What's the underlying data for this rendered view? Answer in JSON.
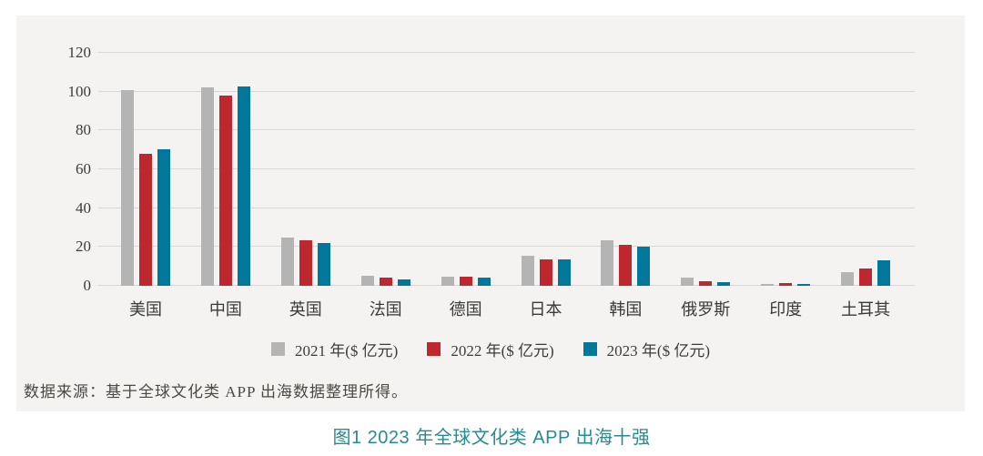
{
  "colors": {
    "page_bg": "#ffffff",
    "panel_bg": "#f4f3f1",
    "gridline": "#d8d7d5",
    "axis_text": "#3c3c3c",
    "source_text": "#4a4944",
    "caption_text": "#2a8a8d",
    "bar_2021": "#b4b4b4",
    "bar_2022": "#be272e",
    "bar_2023": "#00779b"
  },
  "chart_data": {
    "type": "bar",
    "title": "",
    "xlabel": "",
    "ylabel": "",
    "ylim": [
      0,
      120
    ],
    "yticks": [
      0,
      20,
      40,
      60,
      80,
      100,
      120
    ],
    "grid": true,
    "legend_position": "bottom",
    "categories": [
      "美国",
      "中国",
      "英国",
      "法国",
      "德国",
      "日本",
      "韩国",
      "俄罗斯",
      "印度",
      "土耳其"
    ],
    "series": [
      {
        "key": "2021",
        "name": "2021 年($ 亿元)",
        "color_key": "bar_2021",
        "values": [
          101,
          102,
          25,
          5,
          4.5,
          15.5,
          23.5,
          4,
          1,
          7
        ]
      },
      {
        "key": "2022",
        "name": "2022 年($ 亿元)",
        "color_key": "bar_2022",
        "values": [
          68,
          98,
          23.5,
          4,
          4.5,
          13.5,
          21,
          2.5,
          1.3,
          9
        ]
      },
      {
        "key": "2023",
        "name": "2023 年($ 亿元)",
        "color_key": "bar_2023",
        "values": [
          70.5,
          102.5,
          22,
          3.5,
          4,
          13.5,
          20,
          2,
          1,
          13
        ]
      }
    ]
  },
  "source_note": "数据来源：基于全球文化类 APP 出海数据整理所得。",
  "caption": "图1 2023 年全球文化类 APP 出海十强"
}
